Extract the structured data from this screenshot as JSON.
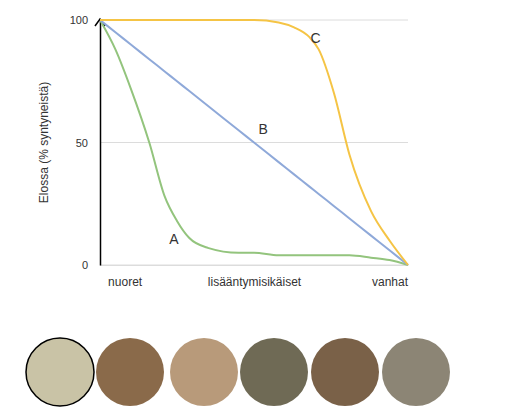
{
  "chart_data": {
    "type": "line",
    "y_label": "Elossa (% syntyneistä)",
    "x": [
      0,
      5,
      10,
      16,
      21,
      25,
      29,
      35,
      45,
      50,
      58,
      63,
      68,
      71,
      76,
      81,
      88,
      94,
      100
    ],
    "xlim": [
      0,
      100
    ],
    "xticks": [
      {
        "value": 8,
        "label": "nuoret"
      },
      {
        "value": 50,
        "label": "lisääntymisikäiset"
      },
      {
        "value": 94,
        "label": "vanhat"
      }
    ],
    "ylim": [
      0,
      100
    ],
    "yticks": [
      0,
      50,
      100
    ],
    "grid": true,
    "series": [
      {
        "name": "A",
        "color": "#93c47d",
        "values": [
          100,
          88,
          72,
          50,
          28,
          18,
          11,
          7,
          5,
          5,
          4,
          4,
          4,
          4,
          4,
          4,
          3,
          2,
          0
        ]
      },
      {
        "name": "B",
        "color": "#8fa9d9",
        "values": [
          100,
          95,
          90,
          84,
          79,
          75,
          71,
          65,
          55,
          50,
          42,
          37,
          32,
          29,
          24,
          19,
          12,
          6,
          0
        ]
      },
      {
        "name": "C",
        "color": "#f5c445",
        "values": [
          100,
          100,
          100,
          100,
          100,
          100,
          100,
          100,
          100,
          100,
          99,
          97,
          93,
          88,
          70,
          45,
          22,
          10,
          0
        ]
      }
    ],
    "annotations": [
      {
        "text": "A",
        "x": 24,
        "y": 10
      },
      {
        "text": "B",
        "x": 53,
        "y": 55
      },
      {
        "text": "C",
        "x": 70,
        "y": 92
      }
    ]
  }
}
